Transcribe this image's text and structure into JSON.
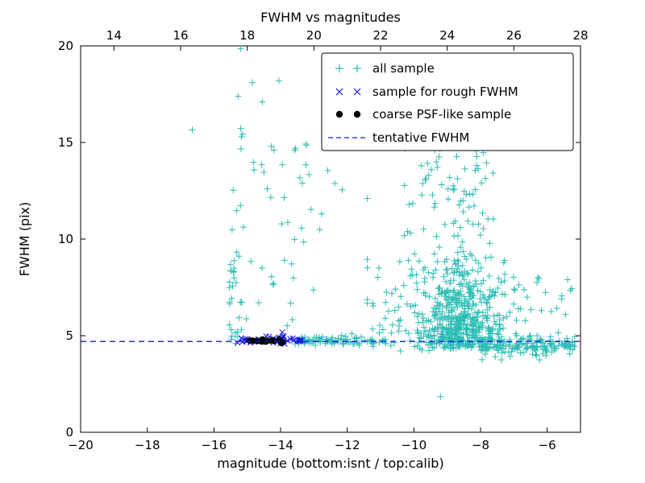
{
  "chart_data": {
    "type": "scatter",
    "title": "FWHM vs magnitudes",
    "xlabel": "magnitude (bottom:isnt / top:calib)",
    "ylabel": "FWHM (pix)",
    "xlim": [
      -20,
      -5
    ],
    "ylim": [
      0,
      20
    ],
    "grid": false,
    "legend_position": "upper right",
    "x_ticks_bottom": {
      "values": [
        -20,
        -18,
        -16,
        -14,
        -12,
        -10,
        -8,
        -6
      ],
      "labels": [
        "−20",
        "−18",
        "−16",
        "−14",
        "−12",
        "−10",
        "−8",
        "−6"
      ]
    },
    "x_ticks_top": {
      "values": [
        -19,
        -17,
        -15,
        -13,
        -11,
        -9,
        -7,
        -5
      ],
      "labels": [
        "14",
        "16",
        "18",
        "20",
        "22",
        "24",
        "26",
        "28"
      ]
    },
    "y_ticks": {
      "values": [
        0,
        5,
        10,
        15,
        20
      ],
      "labels": [
        "0",
        "5",
        "10",
        "15",
        "20"
      ]
    },
    "tentative_fwhm": 4.7,
    "legend": {
      "labels": [
        "all sample",
        "sample for rough FWHM",
        "coarse PSF-like sample",
        "tentative FWHM"
      ]
    },
    "series": [
      {
        "name": "all sample",
        "marker": "plus",
        "color": "#2abdb4",
        "seed": 101,
        "clusters": [
          {
            "n": 30,
            "x": [
              "u",
              -15.55,
              -15.15
            ],
            "y": [
              "u",
              4.6,
              9.5
            ]
          },
          {
            "n": 10,
            "x": [
              "u",
              -15.5,
              -15.0
            ],
            "y": [
              "u",
              9.5,
              18.5
            ]
          },
          {
            "n": 38,
            "x": [
              "u",
              -15.1,
              -12.3
            ],
            "y": [
              "u",
              5.0,
              15.0
            ]
          },
          {
            "n": 90,
            "x": [
              "u",
              -13.6,
              -10.8
            ],
            "y": [
              "n",
              4.75,
              0.12,
              4.4,
              5.1
            ]
          },
          {
            "n": 430,
            "x": [
              "n",
              -8.5,
              0.6,
              -9.9,
              -7.1
            ],
            "y": [
              "hn",
              4.35,
              1.7,
              4.0,
              13.5
            ]
          },
          {
            "n": 190,
            "x": [
              "n",
              -9.2,
              1.0,
              -11.4,
              -6.6
            ],
            "y": [
              "u",
              4.2,
              9.0
            ]
          },
          {
            "n": 90,
            "x": [
              "u",
              -10.3,
              -7.6
            ],
            "y": [
              "u",
              9.0,
              15.2
            ]
          },
          {
            "n": 150,
            "x": [
              "u",
              -8.0,
              -5.15
            ],
            "y": [
              "n",
              4.45,
              0.25,
              3.75,
              5.0
            ]
          },
          {
            "n": 28,
            "x": [
              "u",
              -7.6,
              -5.2
            ],
            "y": [
              "u",
              5.0,
              8.2
            ]
          }
        ],
        "points": [
          [
            -16.65,
            15.65
          ],
          [
            -15.2,
            19.85
          ],
          [
            -9.2,
            1.85
          ],
          [
            -5.3,
            7.35
          ],
          [
            -12.15,
            12.55
          ],
          [
            -13.55,
            14.7
          ],
          [
            -13.95,
            13.85
          ],
          [
            -14.4,
            12.6
          ],
          [
            -11.4,
            12.1
          ],
          [
            -10.6,
            14.9
          ],
          [
            -5.45,
            6.1
          ],
          [
            -14.05,
            18.2
          ],
          [
            -14.85,
            18.1
          ],
          [
            -14.2,
            14.6
          ],
          [
            -14.55,
            17.1
          ]
        ]
      },
      {
        "name": "sample for rough FWHM",
        "marker": "x",
        "color": "#1414dd",
        "seed": 202,
        "clusters": [
          {
            "n": 60,
            "x": [
              "u",
              -15.35,
              -13.35
            ],
            "y": [
              "n",
              4.78,
              0.09,
              4.5,
              5.05
            ]
          }
        ],
        "points": [
          [
            -13.95,
            5.18
          ]
        ]
      },
      {
        "name": "coarse PSF-like sample",
        "marker": "dot",
        "color": "#000000",
        "seed": 303,
        "clusters": [
          {
            "n": 30,
            "x": [
              "u",
              -15.15,
              -13.9
            ],
            "y": [
              "n",
              4.72,
              0.045,
              4.6,
              4.85
            ]
          }
        ],
        "points": []
      }
    ],
    "line": {
      "name": "tentative FWHM",
      "y": 4.7,
      "color": "#1515e8",
      "dash": "7 5"
    }
  }
}
